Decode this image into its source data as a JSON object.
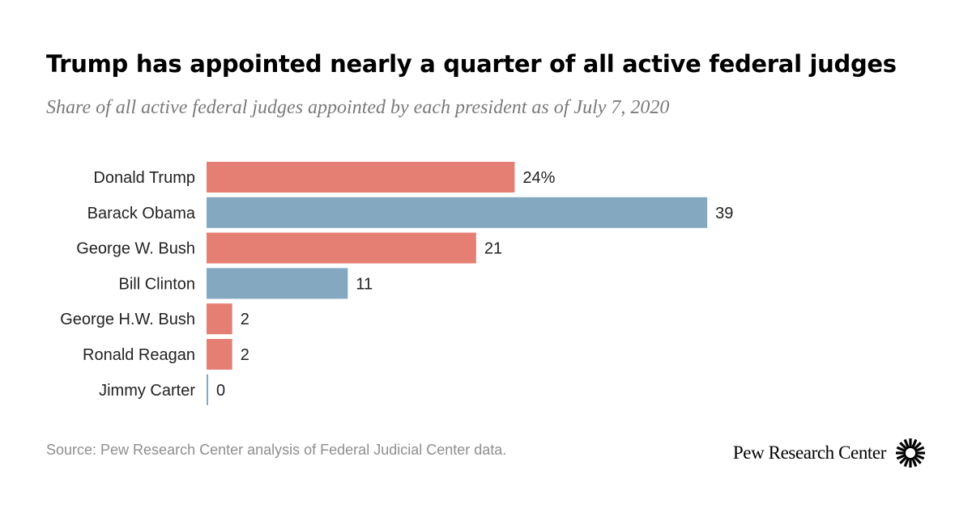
{
  "header": {
    "title": "Trump has appointed nearly a quarter of all active federal judges",
    "subtitle": "Share of all active federal judges appointed by each president as of July 7, 2020"
  },
  "chart_data": {
    "type": "bar",
    "orientation": "horizontal",
    "categories": [
      "Donald Trump",
      "Barack Obama",
      "George W. Bush",
      "Bill Clinton",
      "George H.W. Bush",
      "Ronald Reagan",
      "Jimmy Carter"
    ],
    "values": [
      24,
      39,
      21,
      11,
      2,
      2,
      0
    ],
    "data_labels": [
      "24%",
      "39",
      "21",
      "11",
      "2",
      "2",
      "0"
    ],
    "party": [
      "Republican",
      "Democrat",
      "Republican",
      "Democrat",
      "Republican",
      "Republican",
      "Democrat"
    ],
    "colors": {
      "Republican": "#e57f74",
      "Democrat": "#84a8c0"
    },
    "xlim": [
      0,
      40
    ],
    "grid": false,
    "title": "Trump has appointed nearly a quarter of all active federal judges",
    "xlabel": "",
    "ylabel": ""
  },
  "footer": {
    "source": "Source: Pew Research Center analysis of Federal Judicial Center data.",
    "brand": "Pew Research Center",
    "brand_icon": "pew-sunburst-icon"
  }
}
